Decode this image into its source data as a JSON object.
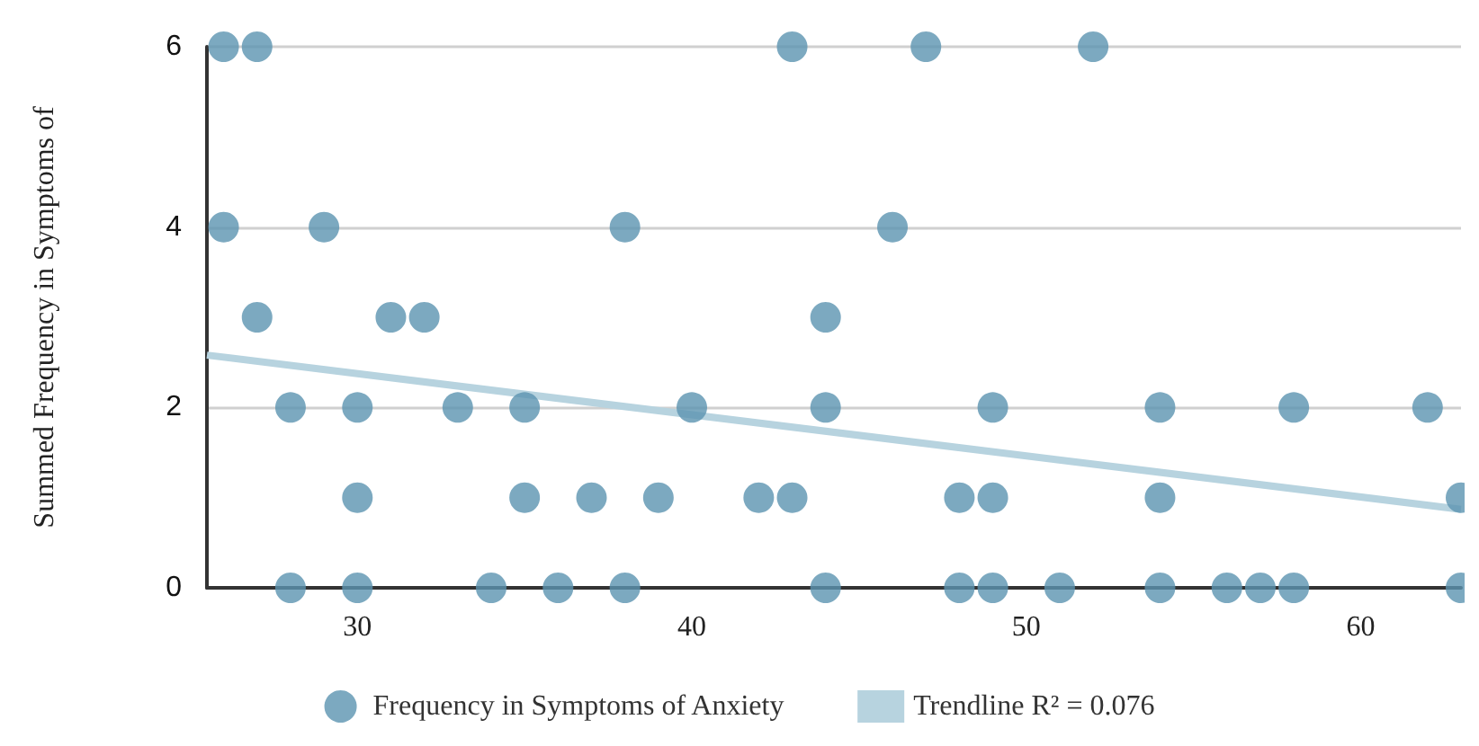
{
  "chart_data": {
    "type": "scatter",
    "ylabel": "Summed Frequency in Symptoms of",
    "xlim": [
      25.5,
      63
    ],
    "xticks": [
      30,
      40,
      50,
      60
    ],
    "ylim": [
      0,
      6
    ],
    "yticks": [
      0,
      2,
      4,
      6
    ],
    "grid": "y",
    "legend": "bottom",
    "series": [
      {
        "name": "Frequency in Symptoms of Anxiety",
        "color": "#5b93b0",
        "marker": "circle",
        "x": [
          26,
          27,
          43,
          47,
          52,
          26,
          29,
          38,
          46,
          27,
          31,
          32,
          44,
          28,
          30,
          33,
          35,
          40,
          44,
          49,
          54,
          58,
          62,
          30,
          35,
          37,
          39,
          42,
          43,
          48,
          49,
          54,
          63,
          28,
          30,
          34,
          36,
          38,
          44,
          48,
          49,
          51,
          54,
          56,
          57,
          58,
          63
        ],
        "values": [
          6,
          6,
          6,
          6,
          6,
          4,
          4,
          4,
          4,
          3,
          3,
          3,
          3,
          2,
          2,
          2,
          2,
          2,
          2,
          2,
          2,
          2,
          2,
          1,
          1,
          1,
          1,
          1,
          1,
          1,
          1,
          1,
          1,
          0,
          0,
          0,
          0,
          0,
          0,
          0,
          0,
          0,
          0,
          0,
          0,
          0,
          0
        ]
      },
      {
        "name": "Trendline R² = 0.076",
        "type": "line",
        "color": "#b7d3df",
        "x": [
          25.5,
          63
        ],
        "values": [
          2.58,
          0.87
        ]
      }
    ]
  }
}
